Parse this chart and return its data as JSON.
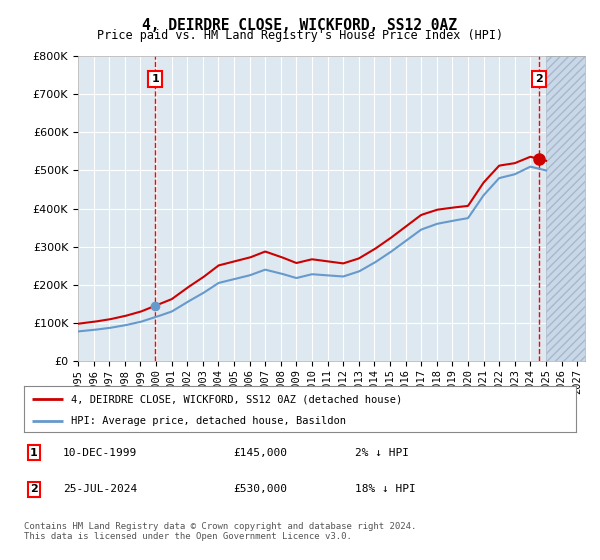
{
  "title": "4, DEIRDRE CLOSE, WICKFORD, SS12 0AZ",
  "subtitle": "Price paid vs. HM Land Registry's House Price Index (HPI)",
  "ylim": [
    0,
    800000
  ],
  "xlim_start": 1995.0,
  "xlim_end": 2027.5,
  "sale1_x": 1999.94,
  "sale1_y": 145000,
  "sale2_x": 2024.56,
  "sale2_y": 530000,
  "line_color_red": "#cc0000",
  "line_color_blue": "#6699cc",
  "bg_color": "#dde8f0",
  "grid_color": "#ffffff",
  "legend_line1": "4, DEIRDRE CLOSE, WICKFORD, SS12 0AZ (detached house)",
  "legend_line2": "HPI: Average price, detached house, Basildon",
  "annotation1_date": "10-DEC-1999",
  "annotation1_price": "£145,000",
  "annotation1_hpi": "2% ↓ HPI",
  "annotation2_date": "25-JUL-2024",
  "annotation2_price": "£530,000",
  "annotation2_hpi": "18% ↓ HPI",
  "footer": "Contains HM Land Registry data © Crown copyright and database right 2024.\nThis data is licensed under the Open Government Licence v3.0.",
  "years_hpi": [
    1995,
    1996,
    1997,
    1998,
    1999,
    2000,
    2001,
    2002,
    2003,
    2004,
    2005,
    2006,
    2007,
    2008,
    2009,
    2010,
    2011,
    2012,
    2013,
    2014,
    2015,
    2016,
    2017,
    2018,
    2019,
    2020,
    2021,
    2022,
    2023,
    2024,
    2025
  ],
  "hpi_values": [
    78000,
    82000,
    87000,
    94000,
    103000,
    116000,
    130000,
    155000,
    178000,
    205000,
    215000,
    225000,
    240000,
    230000,
    218000,
    228000,
    225000,
    222000,
    235000,
    258000,
    285000,
    315000,
    345000,
    360000,
    368000,
    375000,
    435000,
    480000,
    490000,
    510000,
    500000
  ]
}
